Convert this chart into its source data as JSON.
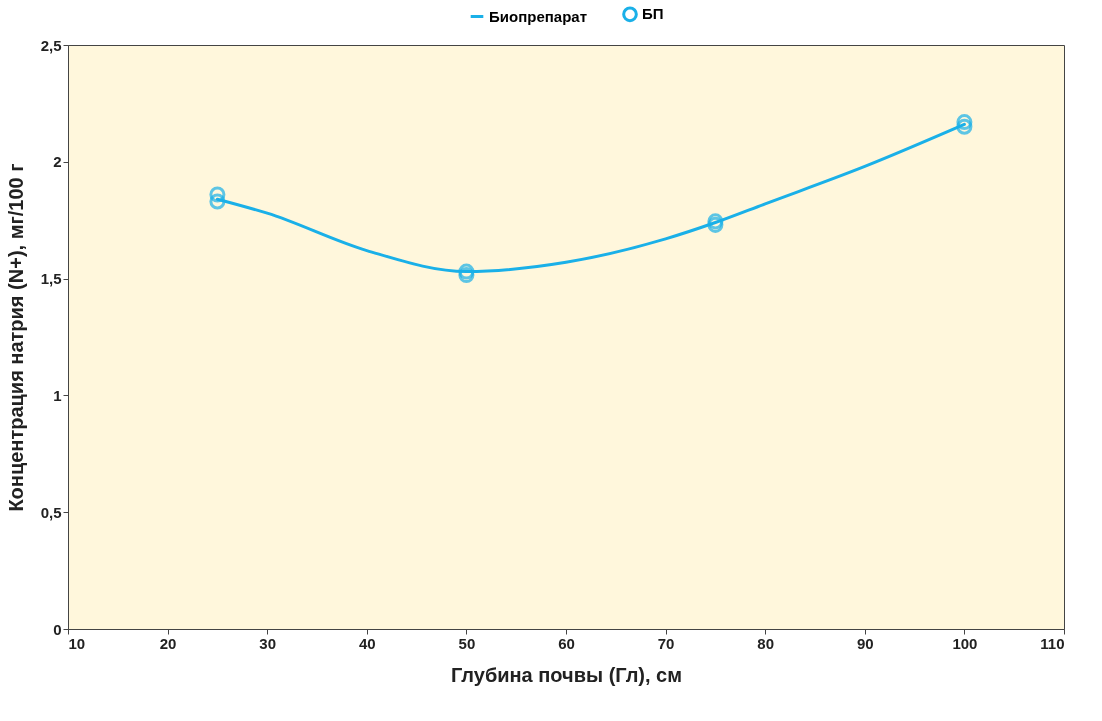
{
  "chart_data": {
    "type": "line",
    "xlabel": "Глубина почвы (Гл), см",
    "ylabel": "Концентрация натрия (N+), мг/100 г",
    "xlim": [
      10,
      110
    ],
    "xticks": [
      10,
      20,
      30,
      40,
      50,
      60,
      70,
      80,
      90,
      100,
      110
    ],
    "ylim": [
      0,
      2.5
    ],
    "yticks": [
      0,
      {
        "value": 0.5,
        "label": "0,5"
      },
      1,
      {
        "value": 1.5,
        "label": "1,5"
      },
      2,
      {
        "value": 2.5,
        "label": "2,5"
      }
    ],
    "legend": "top",
    "grid": false,
    "series": [
      {
        "name": "Биопрепарат",
        "type": "line",
        "marker": "none",
        "color": "#1ab0e8",
        "x": [
          25,
          30,
          40,
          50,
          60,
          70,
          75,
          80,
          90,
          100
        ],
        "values": [
          1.84,
          1.78,
          1.62,
          1.53,
          1.57,
          1.67,
          1.74,
          1.82,
          1.98,
          2.16
        ]
      },
      {
        "name": "БП",
        "type": "scatter",
        "marker": "circle",
        "color": "#1ab0e8",
        "x": [
          25,
          25,
          50,
          50,
          75,
          75,
          100,
          100
        ],
        "values": [
          1.86,
          1.83,
          1.53,
          1.515,
          1.745,
          1.73,
          2.17,
          2.15
        ]
      }
    ]
  }
}
